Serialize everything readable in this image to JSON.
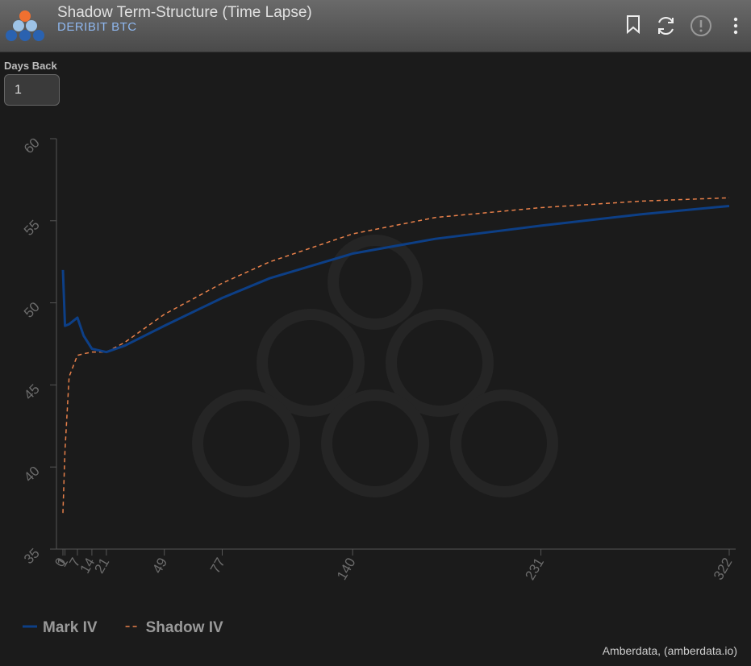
{
  "header": {
    "title": "Shadow Term-Structure (Time Lapse)",
    "subtitle": "DERIBIT BTC"
  },
  "controls": {
    "days_back_label": "Days Back",
    "days_back_value": "1"
  },
  "chart_data": {
    "type": "line",
    "x": [
      0,
      1,
      3,
      7,
      10,
      14,
      21,
      30,
      49,
      77,
      100,
      140,
      180,
      231,
      280,
      322
    ],
    "series": [
      {
        "name": "Mark IV",
        "color": "#0d3f86",
        "dashed": false,
        "values": [
          52.0,
          48.6,
          48.7,
          49.1,
          48.0,
          47.2,
          47.0,
          47.4,
          48.6,
          50.3,
          51.5,
          53.0,
          53.9,
          54.7,
          55.4,
          55.9
        ]
      },
      {
        "name": "Shadow IV",
        "color": "#e8804a",
        "dashed": true,
        "values": [
          37.2,
          41.0,
          45.5,
          46.8,
          46.9,
          47.0,
          47.0,
          47.6,
          49.3,
          51.2,
          52.5,
          54.2,
          55.2,
          55.8,
          56.2,
          56.4
        ]
      }
    ],
    "xlim": [
      0,
      322
    ],
    "xticks": [
      0,
      1,
      7,
      14,
      21,
      49,
      77,
      140,
      231,
      322
    ],
    "ylim": [
      35,
      60
    ],
    "yticks": [
      35,
      40,
      45,
      50,
      55,
      60
    ],
    "legend": "bottom-left"
  },
  "credit": "Amberdata, (amberdata.io)"
}
